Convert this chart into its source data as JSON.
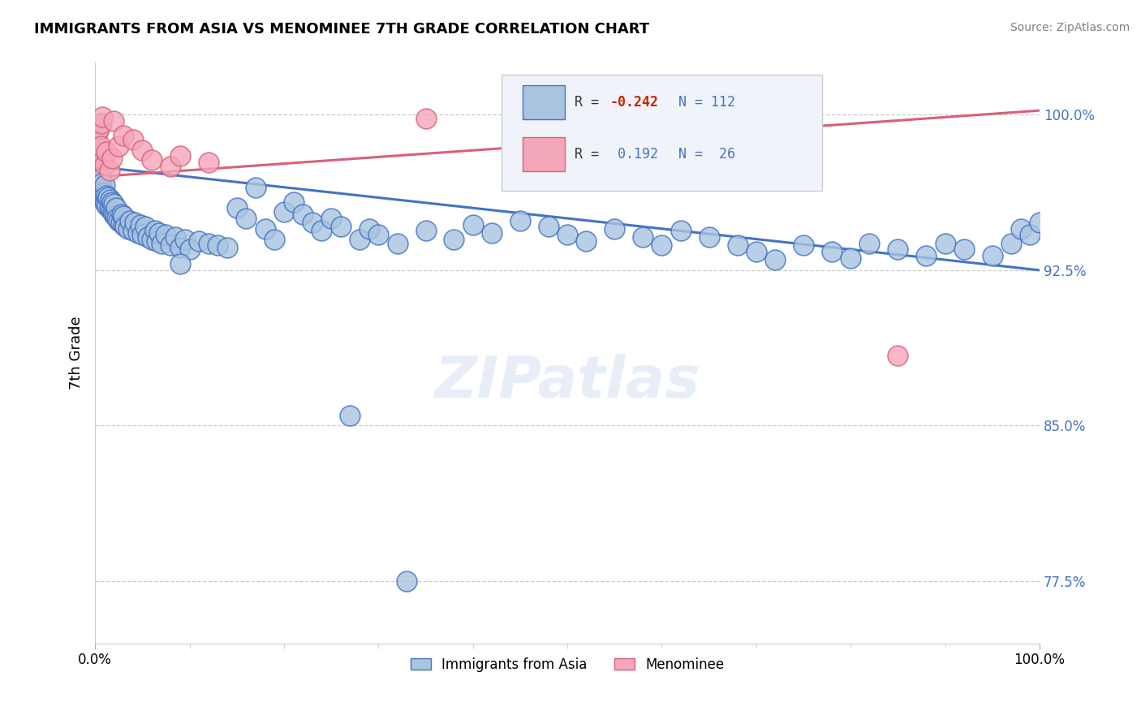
{
  "title": "IMMIGRANTS FROM ASIA VS MENOMINEE 7TH GRADE CORRELATION CHART",
  "source": "Source: ZipAtlas.com",
  "ylabel": "7th Grade",
  "xmin": 0.0,
  "xmax": 1.0,
  "ymin": 0.745,
  "ymax": 1.025,
  "yticks": [
    0.775,
    0.85,
    0.925,
    1.0
  ],
  "ytick_labels": [
    "77.5%",
    "85.0%",
    "92.5%",
    "100.0%"
  ],
  "gridline_y": [
    0.775,
    0.85,
    0.925,
    1.0
  ],
  "blue_color": "#a8c4e0",
  "pink_color": "#f4a7b9",
  "blue_line_color": "#4472c4",
  "pink_line_color": "#d9607a",
  "legend_label_blue": "Immigrants from Asia",
  "legend_label_pink": "Menominee",
  "watermark": "ZIPatlas",
  "blue_trend_x": [
    0.0,
    1.0
  ],
  "blue_trend_y": [
    0.975,
    0.925
  ],
  "pink_trend_x": [
    0.0,
    1.0
  ],
  "pink_trend_y": [
    0.97,
    1.002
  ],
  "blue_scatter_x": [
    0.001,
    0.001,
    0.002,
    0.002,
    0.003,
    0.003,
    0.003,
    0.004,
    0.004,
    0.005,
    0.005,
    0.006,
    0.006,
    0.007,
    0.007,
    0.008,
    0.009,
    0.01,
    0.01,
    0.01,
    0.011,
    0.012,
    0.013,
    0.014,
    0.015,
    0.016,
    0.017,
    0.018,
    0.019,
    0.02,
    0.02,
    0.021,
    0.022,
    0.023,
    0.025,
    0.027,
    0.028,
    0.03,
    0.03,
    0.032,
    0.035,
    0.037,
    0.04,
    0.042,
    0.045,
    0.048,
    0.05,
    0.053,
    0.056,
    0.06,
    0.063,
    0.065,
    0.068,
    0.07,
    0.075,
    0.08,
    0.085,
    0.09,
    0.095,
    0.1,
    0.11,
    0.12,
    0.13,
    0.14,
    0.15,
    0.16,
    0.18,
    0.19,
    0.2,
    0.21,
    0.22,
    0.23,
    0.24,
    0.25,
    0.26,
    0.28,
    0.29,
    0.3,
    0.32,
    0.35,
    0.38,
    0.4,
    0.42,
    0.45,
    0.48,
    0.5,
    0.52,
    0.55,
    0.58,
    0.6,
    0.62,
    0.65,
    0.68,
    0.7,
    0.72,
    0.75,
    0.78,
    0.8,
    0.82,
    0.85,
    0.88,
    0.9,
    0.92,
    0.95,
    0.97,
    0.98,
    0.99,
    1.0,
    0.09,
    0.17,
    0.27,
    0.33
  ],
  "blue_scatter_y": [
    0.975,
    0.978,
    0.972,
    0.976,
    0.971,
    0.974,
    0.977,
    0.968,
    0.972,
    0.966,
    0.97,
    0.965,
    0.969,
    0.963,
    0.967,
    0.962,
    0.96,
    0.958,
    0.962,
    0.966,
    0.957,
    0.961,
    0.956,
    0.96,
    0.955,
    0.959,
    0.954,
    0.958,
    0.953,
    0.952,
    0.957,
    0.951,
    0.955,
    0.95,
    0.949,
    0.948,
    0.952,
    0.947,
    0.951,
    0.946,
    0.945,
    0.949,
    0.944,
    0.948,
    0.943,
    0.947,
    0.942,
    0.946,
    0.941,
    0.94,
    0.944,
    0.939,
    0.943,
    0.938,
    0.942,
    0.937,
    0.941,
    0.936,
    0.94,
    0.935,
    0.939,
    0.938,
    0.937,
    0.936,
    0.955,
    0.95,
    0.945,
    0.94,
    0.953,
    0.958,
    0.952,
    0.948,
    0.944,
    0.95,
    0.946,
    0.94,
    0.945,
    0.942,
    0.938,
    0.944,
    0.94,
    0.947,
    0.943,
    0.949,
    0.946,
    0.942,
    0.939,
    0.945,
    0.941,
    0.937,
    0.944,
    0.941,
    0.937,
    0.934,
    0.93,
    0.937,
    0.934,
    0.931,
    0.938,
    0.935,
    0.932,
    0.938,
    0.935,
    0.932,
    0.938,
    0.945,
    0.942,
    0.948,
    0.928,
    0.965,
    0.855,
    0.775
  ],
  "pink_scatter_x": [
    0.001,
    0.002,
    0.003,
    0.004,
    0.005,
    0.006,
    0.007,
    0.008,
    0.01,
    0.012,
    0.015,
    0.018,
    0.02,
    0.025,
    0.03,
    0.04,
    0.05,
    0.06,
    0.08,
    0.09,
    0.12,
    0.35,
    0.55,
    0.65,
    0.75,
    0.85
  ],
  "pink_scatter_y": [
    0.988,
    0.991,
    0.984,
    0.993,
    0.979,
    0.985,
    0.996,
    0.999,
    0.976,
    0.982,
    0.973,
    0.979,
    0.997,
    0.985,
    0.99,
    0.988,
    0.983,
    0.978,
    0.975,
    0.98,
    0.977,
    0.998,
    0.99,
    0.997,
    0.994,
    0.884
  ]
}
